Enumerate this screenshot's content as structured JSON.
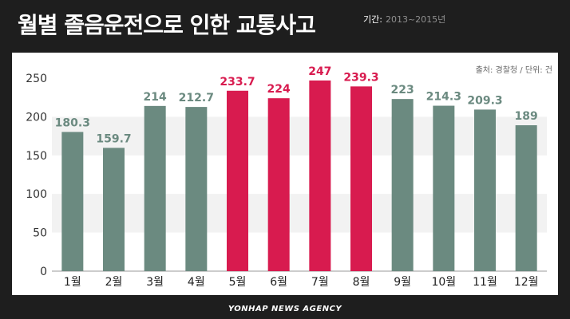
{
  "title": "월별 졸음운전으로 인한 교통사고",
  "period": {
    "label": "기간:",
    "value": "2013~2015년"
  },
  "source": "출처: 경찰청 / 단위: 건",
  "footer": "YONHAP NEWS AGENCY",
  "colors": {
    "normal": "#6b8a80",
    "highlight": "#d81b4f",
    "band": "#f2f2f2"
  },
  "chart_data": {
    "type": "bar",
    "categories": [
      "1월",
      "2월",
      "3월",
      "4월",
      "5월",
      "6월",
      "7월",
      "8월",
      "9월",
      "10월",
      "11월",
      "12월"
    ],
    "values": [
      180.3,
      159.7,
      214,
      212.7,
      233.7,
      224,
      247,
      239.3,
      223,
      214.3,
      209.3,
      189
    ],
    "value_labels": [
      "180.3",
      "159.7",
      "214",
      "212.7",
      "233.7",
      "224",
      "247",
      "239.3",
      "223",
      "214.3",
      "209.3",
      "189"
    ],
    "highlighted": [
      false,
      false,
      false,
      false,
      true,
      true,
      true,
      true,
      false,
      false,
      false,
      false
    ],
    "ylim": [
      0,
      250
    ],
    "yticks": [
      0,
      50,
      100,
      150,
      200,
      250
    ],
    "ytick_labels": [
      "0",
      "50",
      "100",
      "150",
      "200",
      "250"
    ],
    "grid": "alternating horizontal bands",
    "legend": "none"
  }
}
